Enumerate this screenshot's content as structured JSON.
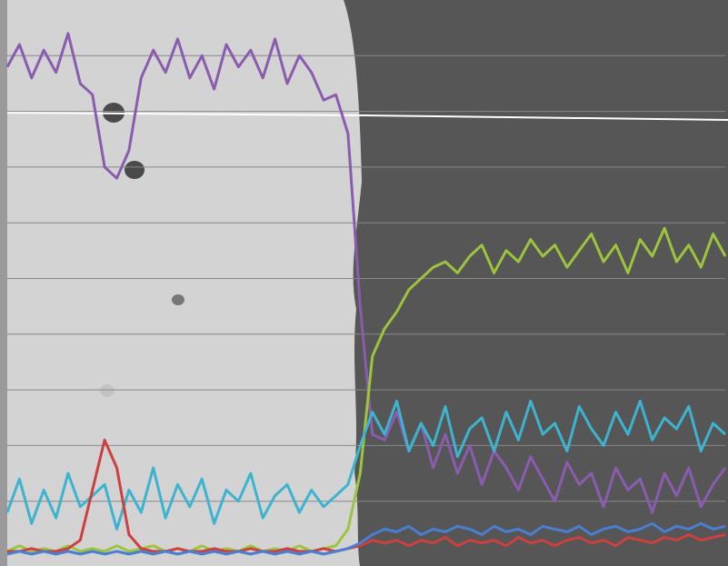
{
  "chart_data": {
    "type": "line",
    "x": [
      0,
      1,
      2,
      3,
      4,
      5,
      6,
      7,
      8,
      9,
      10,
      11,
      12,
      13,
      14,
      15,
      16,
      17,
      18,
      19,
      20,
      21,
      22,
      23,
      24,
      25,
      26,
      27,
      28,
      29,
      30,
      31,
      32,
      33,
      34,
      35,
      36,
      37,
      38,
      39,
      40,
      41,
      42,
      43,
      44,
      45,
      46,
      47,
      48,
      49,
      50,
      51,
      52,
      53,
      54,
      55,
      56,
      57,
      58,
      59
    ],
    "xlim": [
      0,
      59
    ],
    "ylim": [
      0,
      10
    ],
    "yticks": [
      1,
      2,
      3,
      4,
      5,
      6,
      7,
      8,
      9
    ],
    "grid": true,
    "series": [
      {
        "color": "#8a5cb0",
        "values": [
          8.8,
          9.2,
          8.6,
          9.1,
          8.7,
          9.4,
          8.5,
          8.3,
          7.0,
          6.8,
          7.3,
          8.6,
          9.1,
          8.7,
          9.3,
          8.6,
          9.0,
          8.4,
          9.2,
          8.8,
          9.1,
          8.6,
          9.3,
          8.5,
          9.0,
          8.7,
          8.2,
          8.3,
          7.6,
          4.5,
          2.2,
          2.1,
          2.6,
          1.9,
          2.4,
          1.6,
          2.2,
          1.5,
          2.0,
          1.3,
          1.9,
          1.6,
          1.2,
          1.8,
          1.4,
          1.0,
          1.7,
          1.3,
          1.5,
          0.9,
          1.6,
          1.2,
          1.4,
          0.8,
          1.5,
          1.1,
          1.6,
          0.9,
          1.3,
          1.6
        ]
      },
      {
        "color": "#9cc43c",
        "values": [
          0.1,
          0.2,
          0.1,
          0.15,
          0.1,
          0.2,
          0.1,
          0.15,
          0.1,
          0.2,
          0.1,
          0.15,
          0.2,
          0.1,
          0.15,
          0.1,
          0.2,
          0.1,
          0.15,
          0.1,
          0.2,
          0.1,
          0.15,
          0.1,
          0.2,
          0.1,
          0.15,
          0.2,
          0.5,
          1.5,
          3.6,
          4.1,
          4.4,
          4.8,
          5.0,
          5.2,
          5.3,
          5.1,
          5.4,
          5.6,
          5.1,
          5.5,
          5.3,
          5.7,
          5.4,
          5.6,
          5.2,
          5.5,
          5.8,
          5.3,
          5.6,
          5.1,
          5.7,
          5.4,
          5.9,
          5.3,
          5.6,
          5.2,
          5.8,
          5.4
        ]
      },
      {
        "color": "#3cb4d0",
        "values": [
          0.8,
          1.4,
          0.6,
          1.2,
          0.7,
          1.5,
          0.9,
          1.1,
          1.3,
          0.5,
          1.2,
          0.8,
          1.6,
          0.7,
          1.3,
          0.9,
          1.4,
          0.6,
          1.2,
          1.0,
          1.5,
          0.7,
          1.1,
          1.3,
          0.8,
          1.2,
          0.9,
          1.1,
          1.3,
          2.0,
          2.6,
          2.2,
          2.8,
          1.9,
          2.4,
          2.0,
          2.7,
          1.8,
          2.3,
          2.5,
          1.9,
          2.6,
          2.1,
          2.8,
          2.2,
          2.4,
          1.9,
          2.7,
          2.3,
          2.0,
          2.6,
          2.2,
          2.8,
          2.1,
          2.5,
          2.3,
          2.7,
          1.9,
          2.4,
          2.2
        ]
      },
      {
        "color": "#cc4040",
        "values": [
          0.1,
          0.1,
          0.15,
          0.1,
          0.1,
          0.15,
          0.3,
          1.2,
          2.1,
          1.6,
          0.4,
          0.15,
          0.1,
          0.1,
          0.15,
          0.1,
          0.1,
          0.15,
          0.1,
          0.1,
          0.15,
          0.1,
          0.1,
          0.15,
          0.1,
          0.1,
          0.15,
          0.1,
          0.15,
          0.2,
          0.3,
          0.25,
          0.3,
          0.2,
          0.3,
          0.25,
          0.35,
          0.2,
          0.3,
          0.25,
          0.3,
          0.2,
          0.35,
          0.25,
          0.3,
          0.2,
          0.3,
          0.35,
          0.25,
          0.3,
          0.2,
          0.35,
          0.3,
          0.25,
          0.35,
          0.3,
          0.4,
          0.3,
          0.35,
          0.4
        ]
      },
      {
        "color": "#4a7ed0",
        "values": [
          0.05,
          0.1,
          0.05,
          0.1,
          0.05,
          0.1,
          0.05,
          0.1,
          0.05,
          0.1,
          0.05,
          0.1,
          0.05,
          0.1,
          0.05,
          0.1,
          0.05,
          0.1,
          0.05,
          0.1,
          0.05,
          0.1,
          0.05,
          0.1,
          0.05,
          0.1,
          0.05,
          0.1,
          0.15,
          0.25,
          0.4,
          0.5,
          0.45,
          0.55,
          0.4,
          0.5,
          0.45,
          0.55,
          0.5,
          0.4,
          0.55,
          0.45,
          0.5,
          0.4,
          0.55,
          0.5,
          0.45,
          0.55,
          0.4,
          0.5,
          0.55,
          0.45,
          0.5,
          0.6,
          0.45,
          0.55,
          0.5,
          0.6,
          0.5,
          0.55
        ]
      }
    ]
  }
}
